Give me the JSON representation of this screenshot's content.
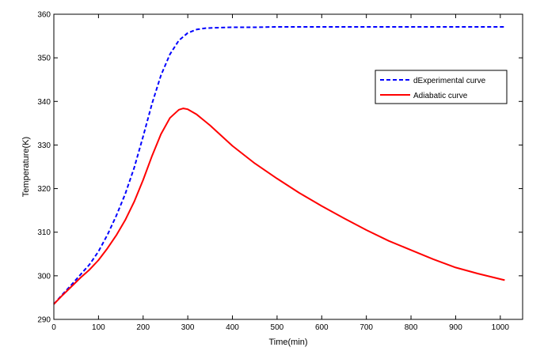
{
  "chart_data": {
    "type": "line",
    "title": "",
    "xlabel": "Time(min)",
    "ylabel": "Temperature(K)",
    "xlim": [
      0,
      1050
    ],
    "ylim": [
      290,
      360
    ],
    "xticks": [
      0,
      100,
      200,
      300,
      400,
      500,
      600,
      700,
      800,
      900,
      1000
    ],
    "yticks": [
      290,
      300,
      310,
      320,
      330,
      340,
      350,
      360
    ],
    "grid": false,
    "legend_position": "top-right",
    "series": [
      {
        "name": "dExperimental curve",
        "color": "#0000ff",
        "style": "dashed",
        "x": [
          0,
          20,
          40,
          60,
          80,
          100,
          120,
          140,
          160,
          180,
          200,
          220,
          240,
          260,
          280,
          300,
          320,
          340,
          360,
          400,
          450,
          500,
          550,
          600,
          700,
          800,
          900,
          1010
        ],
        "y": [
          293.5,
          295.8,
          298.0,
          300.3,
          302.6,
          305.6,
          309.4,
          313.8,
          318.8,
          324.8,
          332.0,
          339.5,
          346.0,
          350.8,
          354.0,
          355.7,
          356.5,
          356.8,
          356.9,
          357.0,
          357.0,
          357.1,
          357.1,
          357.1,
          357.1,
          357.1,
          357.1,
          357.1
        ]
      },
      {
        "name": "Adiabatic curve",
        "color": "#ff0000",
        "style": "solid",
        "x": [
          0,
          20,
          40,
          60,
          80,
          100,
          120,
          140,
          160,
          180,
          200,
          220,
          240,
          260,
          280,
          290,
          300,
          320,
          350,
          400,
          450,
          500,
          550,
          600,
          650,
          700,
          750,
          800,
          850,
          900,
          950,
          1010
        ],
        "y": [
          293.5,
          295.6,
          297.6,
          299.6,
          301.4,
          303.6,
          306.3,
          309.3,
          312.8,
          317.0,
          322.0,
          327.5,
          332.5,
          336.2,
          338.1,
          338.4,
          338.2,
          337.0,
          334.5,
          329.8,
          325.8,
          322.3,
          319.0,
          316.0,
          313.2,
          310.5,
          308.0,
          305.9,
          303.8,
          301.9,
          300.5,
          299.0
        ]
      }
    ]
  }
}
